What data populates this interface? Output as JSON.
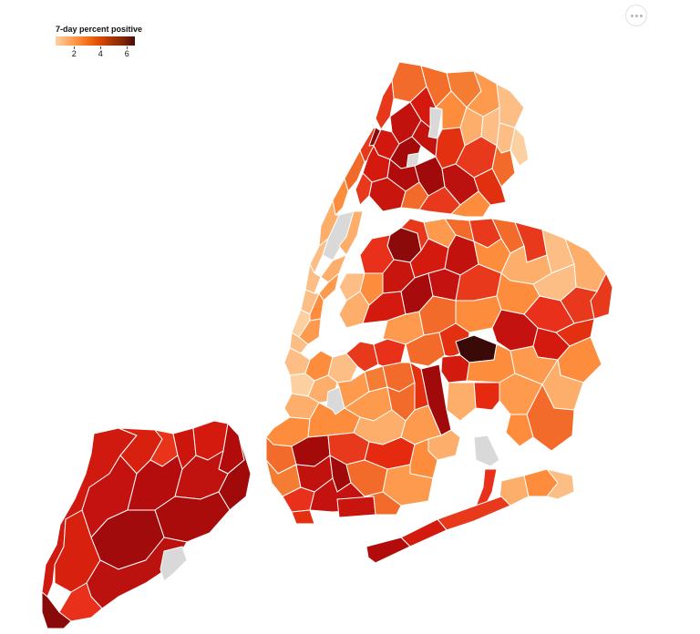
{
  "legend": {
    "title": "7-day percent positive",
    "ticks": [
      {
        "value": 2,
        "label": "2"
      },
      {
        "value": 4,
        "label": "4"
      },
      {
        "value": 6,
        "label": "6"
      }
    ],
    "domain": [
      0.6,
      6.6
    ],
    "colors": [
      "#fdd0a2",
      "#fdae6b",
      "#fd8d3c",
      "#f16913",
      "#d94801",
      "#a63603",
      "#7f2704",
      "#4a0a0a"
    ]
  },
  "no_data_color": "#d9d9d9",
  "more_button": {
    "icon": "more-horizontal-icon"
  }
}
